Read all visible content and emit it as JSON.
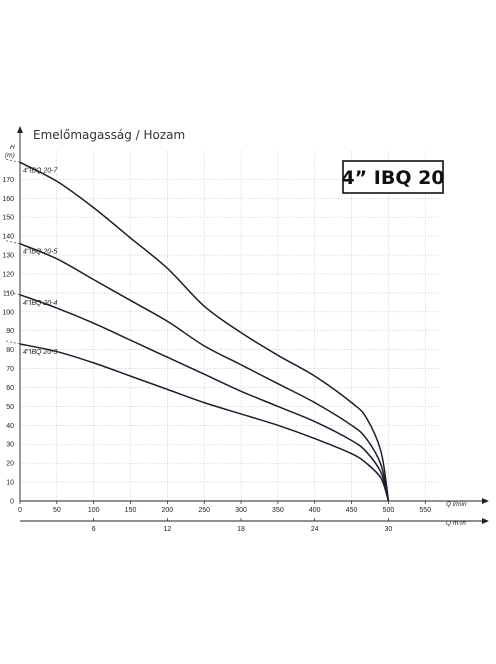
{
  "header": {
    "title": "Emelőmagasság / Hozam"
  },
  "model_box": {
    "label": "4” IBQ 20"
  },
  "chart_data": {
    "type": "line",
    "title": "Emelőmagasság / Hozam",
    "ylabel": "H (m)",
    "xlabel": "Q l/min",
    "x2label": "Q m³/h",
    "xlim": [
      0,
      570
    ],
    "ylim": [
      0,
      185
    ],
    "y_ticks": [
      0,
      10,
      20,
      30,
      40,
      50,
      60,
      70,
      80,
      90,
      100,
      110,
      120,
      130,
      140,
      150,
      160,
      170
    ],
    "x_ticks": [
      0,
      50,
      100,
      150,
      200,
      250,
      300,
      350,
      400,
      450,
      500,
      550
    ],
    "x2_ticks": [
      6,
      12,
      18,
      24,
      30
    ],
    "grid": true,
    "series": [
      {
        "name": "4\"IBQ 20-7",
        "x": [
          0,
          50,
          100,
          150,
          200,
          250,
          300,
          350,
          400,
          450,
          470,
          490,
          500
        ],
        "y": [
          179,
          169,
          155,
          139,
          123,
          103,
          89,
          77,
          66,
          52,
          44,
          26,
          0
        ]
      },
      {
        "name": "4\"IBQ 20-5",
        "x": [
          0,
          50,
          100,
          150,
          200,
          250,
          300,
          350,
          400,
          450,
          470,
          490,
          500
        ],
        "y": [
          136,
          128,
          117,
          106,
          95,
          82,
          72,
          62,
          52,
          40,
          33,
          19,
          0
        ]
      },
      {
        "name": "4\"IBQ 20-4",
        "x": [
          0,
          50,
          100,
          150,
          200,
          250,
          300,
          350,
          400,
          450,
          470,
          490,
          500
        ],
        "y": [
          109,
          102,
          94,
          85,
          76,
          67,
          58,
          50,
          42,
          32,
          26,
          15,
          0
        ]
      },
      {
        "name": "4\"IBQ 20-3",
        "x": [
          0,
          50,
          100,
          150,
          200,
          250,
          300,
          350,
          400,
          450,
          470,
          490,
          500
        ],
        "y": [
          83,
          79,
          73,
          66,
          59,
          52,
          46,
          40,
          33,
          25,
          20,
          12,
          0
        ]
      }
    ],
    "curve_labels": [
      "4\"IBQ 20-7",
      "4\"IBQ 20-5",
      "4\"IBQ 20-4",
      "4\"IBQ 20-3"
    ],
    "y_label_top": "H",
    "y_label_unit": "(m)",
    "x_label_q": "Q",
    "x_label_lmin": "l/min",
    "x2_label_unit": "m³/h"
  }
}
